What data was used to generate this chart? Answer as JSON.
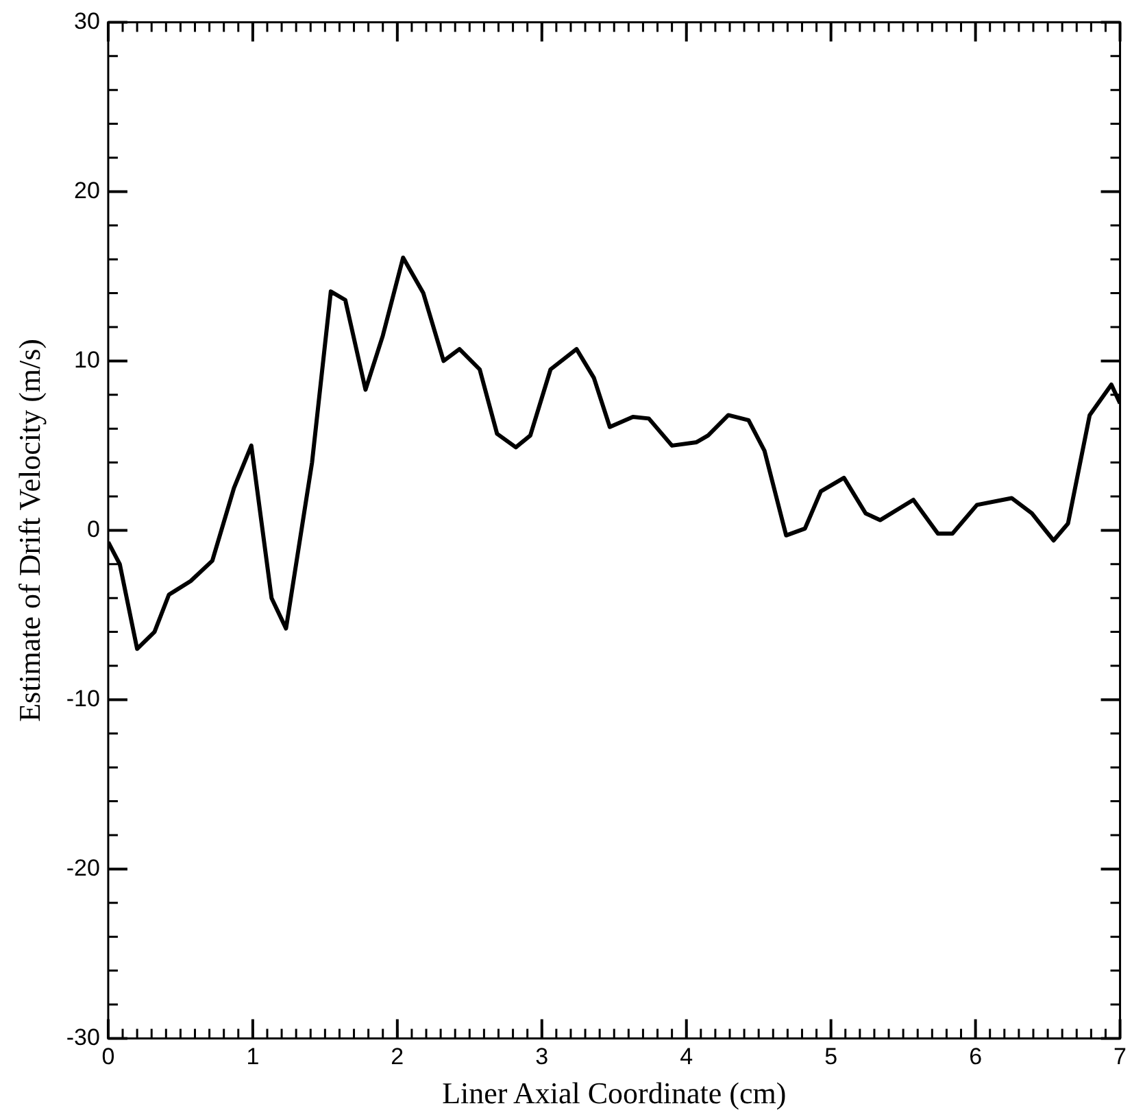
{
  "chart_data": {
    "type": "line",
    "xlabel": "Liner Axial Coordinate (cm)",
    "ylabel": "Estimate of Drift Velocity (m/s)",
    "xlim": [
      0,
      7
    ],
    "ylim": [
      -30,
      30
    ],
    "xticks": [
      0,
      1,
      2,
      3,
      4,
      5,
      6,
      7
    ],
    "yticks": [
      -30,
      -20,
      -10,
      0,
      10,
      20,
      30
    ],
    "grid": false,
    "legend": false,
    "marker": "none",
    "line_style": "solid",
    "series": [
      {
        "color": "#000000",
        "x": [
          0,
          0.08,
          0.2,
          0.32,
          0.42,
          0.57,
          0.72,
          0.87,
          0.99,
          1.13,
          1.23,
          1.41,
          1.54,
          1.64,
          1.78,
          1.9,
          2.04,
          2.18,
          2.32,
          2.43,
          2.57,
          2.69,
          2.82,
          2.92,
          3.06,
          3.24,
          3.36,
          3.47,
          3.63,
          3.74,
          3.9,
          4.07,
          4.15,
          4.29,
          4.43,
          4.54,
          4.69,
          4.82,
          4.93,
          5.09,
          5.24,
          5.34,
          5.57,
          5.74,
          5.84,
          6.01,
          6.25,
          6.39,
          6.54,
          6.64,
          6.79,
          6.94,
          7
        ],
        "values": [
          -0.7,
          -2,
          -7,
          -6,
          -3.8,
          -3,
          -1.8,
          2.5,
          5,
          -4,
          -5.8,
          4,
          14.1,
          13.6,
          8.3,
          11.5,
          16.1,
          14,
          10,
          10.7,
          9.5,
          5.7,
          4.9,
          5.6,
          9.5,
          10.7,
          9,
          6.1,
          6.7,
          6.6,
          5,
          5.2,
          5.6,
          6.8,
          6.5,
          4.7,
          -0.3,
          0.1,
          2.3,
          3.1,
          1,
          0.6,
          1.8,
          -0.2,
          -0.2,
          1.5,
          1.9,
          1,
          -0.6,
          0.4,
          6.8,
          8.6,
          7.5
        ]
      }
    ]
  }
}
